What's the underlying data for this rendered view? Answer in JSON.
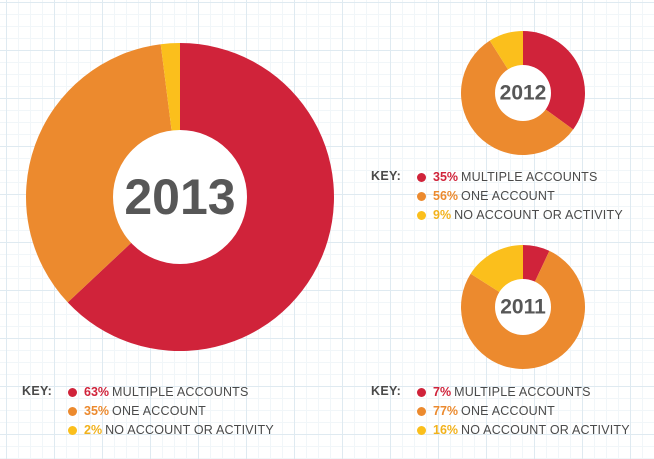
{
  "colors": {
    "multiple": "#d0233a",
    "one": "#ec8a2e",
    "none": "#fbbf1c"
  },
  "chart_data": [
    {
      "type": "pie",
      "title": "2013",
      "categories": [
        "MULTIPLE ACCOUNTS",
        "ONE ACCOUNT",
        "NO ACCOUNT OR ACTIVITY"
      ],
      "values": [
        63,
        35,
        2
      ],
      "key_title": "KEY:",
      "key": [
        {
          "pct": "63%",
          "label": "MULTIPLE ACCOUNTS",
          "color": "#d0233a"
        },
        {
          "pct": "35%",
          "label": "ONE ACCOUNT",
          "color": "#ec8a2e"
        },
        {
          "pct": "2%",
          "label": "NO ACCOUNT OR ACTIVITY",
          "color": "#fbbf1c"
        }
      ]
    },
    {
      "type": "pie",
      "title": "2012",
      "categories": [
        "MULTIPLE ACCOUNTS",
        "ONE ACCOUNT",
        "NO ACCOUNT OR ACTIVITY"
      ],
      "values": [
        35,
        56,
        9
      ],
      "key_title": "KEY:",
      "key": [
        {
          "pct": "35%",
          "label": "MULTIPLE ACCOUNTS",
          "color": "#d0233a"
        },
        {
          "pct": "56%",
          "label": "ONE ACCOUNT",
          "color": "#ec8a2e"
        },
        {
          "pct": "9%",
          "label": "NO ACCOUNT OR ACTIVITY",
          "color": "#fbbf1c"
        }
      ]
    },
    {
      "type": "pie",
      "title": "2011",
      "categories": [
        "MULTIPLE ACCOUNTS",
        "ONE ACCOUNT",
        "NO ACCOUNT OR ACTIVITY"
      ],
      "values": [
        7,
        77,
        16
      ],
      "key_title": "KEY:",
      "key": [
        {
          "pct": "7%",
          "label": "MULTIPLE ACCOUNTS",
          "color": "#d0233a"
        },
        {
          "pct": "77%",
          "label": "ONE ACCOUNT",
          "color": "#ec8a2e"
        },
        {
          "pct": "16%",
          "label": "NO ACCOUNT OR ACTIVITY",
          "color": "#fbbf1c"
        }
      ]
    }
  ]
}
